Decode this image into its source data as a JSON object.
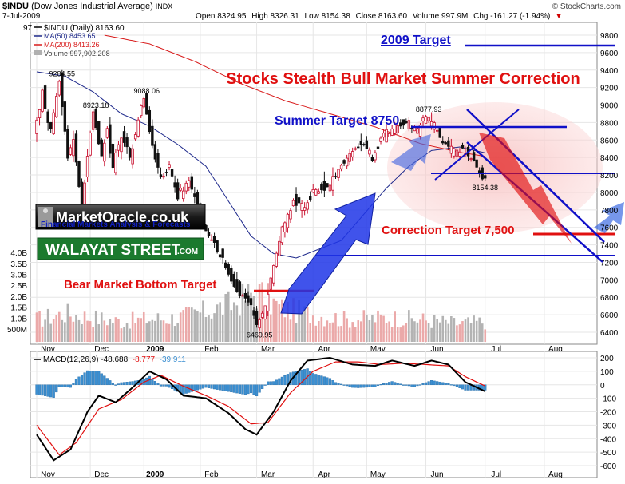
{
  "header": {
    "symbol": "$INDU",
    "name": "(Dow Jones Industrial Average)",
    "exchange": "INDX",
    "date": "7-Jul-2009",
    "open_label": "Open",
    "open": "8324.95",
    "high_label": "High",
    "high": "8326.31",
    "low_label": "Low",
    "low": "8154.38",
    "close_label": "Close",
    "close": "8163.60",
    "volume_label": "Volume",
    "volume": "997.9M",
    "chg_label": "Chg",
    "chg": "-161.27 (-1.94%)",
    "chg_arrow": "▼",
    "source": "© StockCharts.com"
  },
  "legend": {
    "price": "$INDU (Daily) 8163.60",
    "ma50": "MA(50) 8453.65",
    "ma200": "MA(200) 8413.26",
    "volume": "Volume 997,902,208",
    "clipped_label": "97"
  },
  "annotations": {
    "main_title": "Stocks Stealth Bull Market Summer Correction",
    "target_2009": "2009 Target",
    "summer_target": "Summer Target 8750",
    "correction_target": "Correction Target 7,500",
    "bear_bottom": "Bear Market Bottom Target"
  },
  "logos": {
    "marketoracle": "MarketOracle.co.uk",
    "marketoracle_tagline": "Financial Markets Analysis & Forecasts",
    "walayat": "WALAYAT STREET",
    "walayat_com": ".COM"
  },
  "colors": {
    "up_candle": "#c8102e",
    "down_candle": "#111111",
    "ma50": "#1f2a8c",
    "ma200": "#d81b1b",
    "annotation_blue": "#1010c8",
    "annotation_red": "#e01010",
    "macd_line": "#000000",
    "signal_line": "#e01010",
    "histogram": "#3b8fd1"
  },
  "chart_data": {
    "type": "candlestick",
    "price_axis": {
      "min": 6400,
      "max": 9800,
      "ticks": [
        6400,
        6600,
        6800,
        7000,
        7200,
        7400,
        7600,
        7800,
        8000,
        8200,
        8400,
        8600,
        8800,
        9000,
        9200,
        9400,
        9600,
        9800
      ]
    },
    "volume_axis": {
      "ticks": [
        "500M",
        "1.0B",
        "1.5B",
        "2.0B",
        "2.5B",
        "3.0B",
        "3.5B",
        "4.0B"
      ]
    },
    "x_axis": {
      "month_labels": [
        "Nov",
        "Dec",
        "2009",
        "Feb",
        "Mar",
        "Apr",
        "May",
        "Jun",
        "Jul",
        "Aug"
      ],
      "month_positions": [
        0,
        19,
        38,
        58,
        78,
        98,
        117,
        138,
        159,
        180
      ],
      "total_days": 197
    },
    "price_path": [
      [
        0,
        8600
      ],
      [
        3,
        9150
      ],
      [
        6,
        8700
      ],
      [
        9,
        9284.55
      ],
      [
        12,
        8400
      ],
      [
        14,
        8600
      ],
      [
        17,
        7773
      ],
      [
        19,
        8450
      ],
      [
        21,
        8923.18
      ],
      [
        24,
        8400
      ],
      [
        26,
        8700
      ],
      [
        28,
        8300
      ],
      [
        31,
        8650
      ],
      [
        34,
        8400
      ],
      [
        36,
        8700
      ],
      [
        38,
        9000
      ],
      [
        39,
        9088.06
      ],
      [
        42,
        8500
      ],
      [
        45,
        8150
      ],
      [
        48,
        8300
      ],
      [
        51,
        7950
      ],
      [
        55,
        8150
      ],
      [
        58,
        7850
      ],
      [
        62,
        7500
      ],
      [
        66,
        7300
      ],
      [
        70,
        7000
      ],
      [
        74,
        6800
      ],
      [
        77,
        6700
      ],
      [
        79,
        6469.95
      ],
      [
        82,
        6700
      ],
      [
        85,
        7200
      ],
      [
        88,
        7600
      ],
      [
        92,
        7900
      ],
      [
        96,
        7850
      ],
      [
        100,
        8050
      ],
      [
        104,
        8050
      ],
      [
        108,
        8250
      ],
      [
        112,
        8450
      ],
      [
        117,
        8550
      ],
      [
        120,
        8400
      ],
      [
        124,
        8650
      ],
      [
        128,
        8750
      ],
      [
        132,
        8800
      ],
      [
        136,
        8700
      ],
      [
        139,
        8877.93
      ],
      [
        142,
        8750
      ],
      [
        145,
        8600
      ],
      [
        149,
        8450
      ],
      [
        152,
        8500
      ],
      [
        155,
        8400
      ],
      [
        158,
        8250
      ],
      [
        159,
        8163.6
      ]
    ],
    "labeled_prices": [
      {
        "day": 9,
        "value": 9284.55,
        "label": "9284.55"
      },
      {
        "day": 21,
        "value": 8923.18,
        "label": "8923.18"
      },
      {
        "day": 39,
        "value": 9088.06,
        "label": "9088.06"
      },
      {
        "day": 17,
        "value": 7773,
        "label": "7773."
      },
      {
        "day": 79,
        "value": 6469.95,
        "label": "6469.95"
      },
      {
        "day": 139,
        "value": 8877.93,
        "label": "8877.93"
      },
      {
        "day": 159,
        "value": 8154.38,
        "label": "8154.38"
      }
    ],
    "ma50_path": [
      [
        0,
        9380
      ],
      [
        10,
        9330
      ],
      [
        20,
        9150
      ],
      [
        30,
        8900
      ],
      [
        40,
        8760
      ],
      [
        50,
        8550
      ],
      [
        60,
        8300
      ],
      [
        68,
        7900
      ],
      [
        76,
        7500
      ],
      [
        84,
        7300
      ],
      [
        92,
        7250
      ],
      [
        100,
        7350
      ],
      [
        108,
        7450
      ],
      [
        116,
        7750
      ],
      [
        124,
        8050
      ],
      [
        132,
        8300
      ],
      [
        140,
        8480
      ],
      [
        150,
        8520
      ],
      [
        159,
        8453.65
      ]
    ],
    "ma200_path": [
      [
        24,
        9800
      ],
      [
        40,
        9700
      ],
      [
        56,
        9500
      ],
      [
        72,
        9250
      ],
      [
        88,
        9050
      ],
      [
        104,
        8900
      ],
      [
        120,
        8750
      ],
      [
        136,
        8560
      ],
      [
        150,
        8460
      ],
      [
        159,
        8413.26
      ]
    ],
    "volume_period": [
      [
        0,
        1.1
      ],
      [
        10,
        1.4
      ],
      [
        20,
        1.2
      ],
      [
        30,
        1.0
      ],
      [
        38,
        1.1
      ],
      [
        50,
        1.2
      ],
      [
        60,
        1.5
      ],
      [
        70,
        1.9
      ],
      [
        78,
        2.5
      ],
      [
        86,
        1.7
      ],
      [
        96,
        1.4
      ],
      [
        110,
        1.1
      ],
      [
        124,
        1.2
      ],
      [
        136,
        1.1
      ],
      [
        150,
        0.9
      ],
      [
        159,
        1.0
      ]
    ],
    "macd": {
      "name": "MACD(12,26,9)",
      "macd_value": "-48.688",
      "signal_value": "-8.777",
      "hist_value": "-39.911",
      "axis": {
        "min": -600,
        "max": 200,
        "ticks": [
          -600,
          -500,
          -400,
          -300,
          -200,
          -100,
          0,
          100,
          200
        ]
      },
      "macd_path": [
        [
          0,
          -370
        ],
        [
          6,
          -560
        ],
        [
          12,
          -480
        ],
        [
          18,
          -200
        ],
        [
          22,
          -80
        ],
        [
          28,
          -130
        ],
        [
          34,
          -20
        ],
        [
          40,
          100
        ],
        [
          46,
          40
        ],
        [
          52,
          -80
        ],
        [
          60,
          -100
        ],
        [
          68,
          -210
        ],
        [
          74,
          -330
        ],
        [
          78,
          -370
        ],
        [
          84,
          -200
        ],
        [
          90,
          30
        ],
        [
          96,
          180
        ],
        [
          104,
          200
        ],
        [
          112,
          150
        ],
        [
          120,
          140
        ],
        [
          126,
          180
        ],
        [
          134,
          140
        ],
        [
          140,
          180
        ],
        [
          146,
          150
        ],
        [
          152,
          20
        ],
        [
          159,
          -48.688
        ]
      ],
      "signal_path": [
        [
          0,
          -300
        ],
        [
          8,
          -520
        ],
        [
          14,
          -430
        ],
        [
          22,
          -180
        ],
        [
          30,
          -110
        ],
        [
          38,
          20
        ],
        [
          44,
          70
        ],
        [
          52,
          -10
        ],
        [
          60,
          -80
        ],
        [
          68,
          -160
        ],
        [
          76,
          -290
        ],
        [
          82,
          -280
        ],
        [
          90,
          -60
        ],
        [
          98,
          100
        ],
        [
          106,
          170
        ],
        [
          114,
          170
        ],
        [
          122,
          150
        ],
        [
          130,
          160
        ],
        [
          138,
          150
        ],
        [
          146,
          140
        ],
        [
          152,
          60
        ],
        [
          159,
          -8.777
        ]
      ]
    }
  }
}
